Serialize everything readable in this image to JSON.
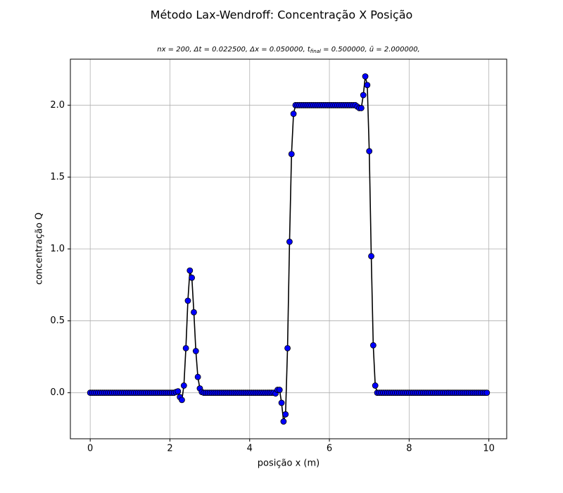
{
  "chart_data": {
    "type": "line",
    "title": "Método Lax-Wendroff: Concentração X Posição",
    "subtitle": [
      "nx = 200, Δt = 0.022500, Δx = 0.050000, t",
      "final",
      " = 0.500000, ū = 2.000000,"
    ],
    "x_label": "posição x (m)",
    "y_label": "concentração Q",
    "x": [
      0,
      0.05,
      0.1,
      0.15,
      0.2,
      0.25,
      0.3,
      0.35,
      0.4,
      0.45,
      0.5,
      0.55,
      0.6,
      0.65,
      0.7,
      0.75,
      0.8,
      0.85,
      0.9,
      0.95,
      1,
      1.05,
      1.1,
      1.15,
      1.2,
      1.25,
      1.3,
      1.35,
      1.4,
      1.45,
      1.5,
      1.55,
      1.6,
      1.65,
      1.7,
      1.75,
      1.8,
      1.85,
      1.9,
      1.95,
      2,
      2.05,
      2.1,
      2.15,
      2.2,
      2.25,
      2.3,
      2.35,
      2.4,
      2.45,
      2.5,
      2.55,
      2.6,
      2.65,
      2.7,
      2.75,
      2.8,
      2.85,
      2.9,
      2.95,
      3,
      3.05,
      3.1,
      3.15,
      3.2,
      3.25,
      3.3,
      3.35,
      3.4,
      3.45,
      3.5,
      3.55,
      3.6,
      3.65,
      3.7,
      3.75,
      3.8,
      3.85,
      3.9,
      3.95,
      4,
      4.05,
      4.1,
      4.15,
      4.2,
      4.25,
      4.3,
      4.35,
      4.4,
      4.45,
      4.5,
      4.55,
      4.6,
      4.65,
      4.7,
      4.75,
      4.8,
      4.85,
      4.9,
      4.95,
      5,
      5.05,
      5.1,
      5.15,
      5.2,
      5.25,
      5.3,
      5.35,
      5.4,
      5.45,
      5.5,
      5.55,
      5.6,
      5.65,
      5.7,
      5.75,
      5.8,
      5.85,
      5.9,
      5.95,
      6,
      6.05,
      6.1,
      6.15,
      6.2,
      6.25,
      6.3,
      6.35,
      6.4,
      6.45,
      6.5,
      6.55,
      6.6,
      6.65,
      6.7,
      6.75,
      6.8,
      6.85,
      6.9,
      6.95,
      7,
      7.05,
      7.1,
      7.15,
      7.2,
      7.25,
      7.3,
      7.35,
      7.4,
      7.45,
      7.5,
      7.55,
      7.6,
      7.65,
      7.7,
      7.75,
      7.8,
      7.85,
      7.9,
      7.95,
      8,
      8.05,
      8.1,
      8.15,
      8.2,
      8.25,
      8.3,
      8.35,
      8.4,
      8.45,
      8.5,
      8.55,
      8.6,
      8.65,
      8.7,
      8.75,
      8.8,
      8.85,
      8.9,
      8.95,
      9,
      9.05,
      9.1,
      9.15,
      9.2,
      9.25,
      9.3,
      9.35,
      9.4,
      9.45,
      9.5,
      9.55,
      9.6,
      9.65,
      9.7,
      9.75,
      9.8,
      9.85,
      9.9,
      9.95
    ],
    "values": [
      0,
      0,
      0,
      0,
      0,
      0,
      0,
      0,
      0,
      0,
      0,
      0,
      0,
      0,
      0,
      0,
      0,
      0,
      0,
      0,
      0,
      0,
      0,
      0,
      0,
      0,
      0,
      0,
      0,
      0,
      0,
      0,
      0,
      0,
      0,
      0,
      0,
      0,
      0,
      0,
      0,
      0,
      0,
      0.005,
      0.01,
      -0.03,
      -0.05,
      0.05,
      0.31,
      0.64,
      0.85,
      0.8,
      0.56,
      0.29,
      0.11,
      0.03,
      0.005,
      0,
      0,
      0,
      0,
      0,
      0,
      0,
      0,
      0,
      0,
      0,
      0,
      0,
      0,
      0,
      0,
      0,
      0,
      0,
      0,
      0,
      0,
      0,
      0,
      0,
      0,
      0,
      0,
      0,
      0,
      0,
      0,
      0,
      0,
      0,
      0,
      -0.005,
      0.02,
      0.02,
      -0.07,
      -0.2,
      -0.15,
      0.31,
      1.05,
      1.66,
      1.94,
      2,
      2,
      2,
      2,
      2,
      2,
      2,
      2,
      2,
      2,
      2,
      2,
      2,
      2,
      2,
      2,
      2,
      2,
      2,
      2,
      2,
      2,
      2,
      2,
      2,
      2,
      2,
      2,
      2,
      2,
      2,
      1.99,
      1.98,
      1.98,
      2.07,
      2.2,
      2.14,
      1.68,
      0.95,
      0.33,
      0.05,
      0,
      0,
      0,
      0,
      0,
      0,
      0,
      0,
      0,
      0,
      0,
      0,
      0,
      0,
      0,
      0,
      0,
      0,
      0,
      0,
      0,
      0,
      0,
      0,
      0,
      0,
      0,
      0,
      0,
      0,
      0,
      0,
      0,
      0,
      0,
      0,
      0,
      0,
      0,
      0,
      0,
      0,
      0,
      0,
      0,
      0,
      0,
      0,
      0,
      0,
      0,
      0,
      0,
      0,
      0,
      0
    ],
    "line_color": "#000000",
    "marker_color": "#0000ff",
    "xlim": [
      -0.4975,
      10.4475
    ],
    "ylim": [
      -0.32,
      2.32
    ],
    "xticks": [
      0,
      2,
      4,
      6,
      8,
      10
    ],
    "yticks": [
      {
        "value": 0,
        "label": "0.0"
      },
      0.5,
      {
        "value": 1,
        "label": "1.0"
      },
      1.5,
      {
        "value": 2,
        "label": "2.0"
      }
    ],
    "grid": true
  }
}
